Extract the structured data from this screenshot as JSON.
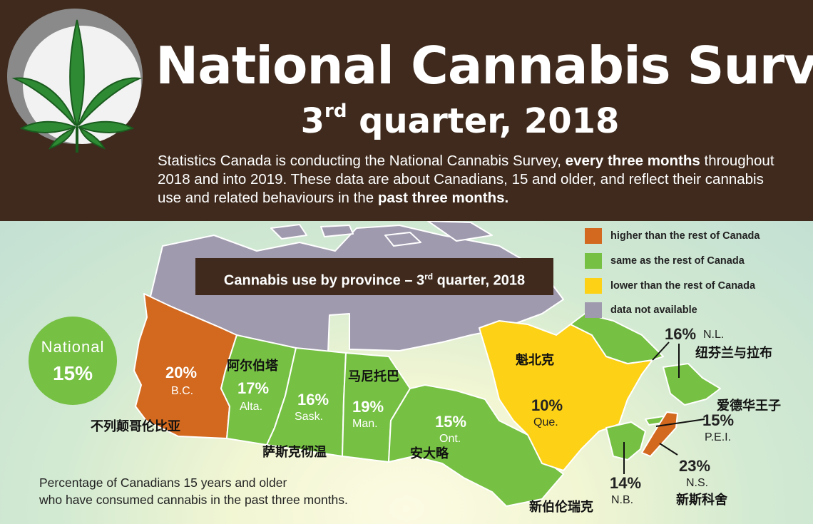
{
  "header": {
    "title": "National Cannabis Survey",
    "subtitle_prefix": "3",
    "subtitle_sup": "rd",
    "subtitle_rest": " quarter, 2018",
    "intro": {
      "p1": "Statistics Canada is conducting the National Cannabis Survey, ",
      "b1": "every three months",
      "p2": " throughout 2018 and into 2019. These data are about Canadians, 15 and older, and reflect their cannabis use and related behaviours in the ",
      "b2": "past three months."
    }
  },
  "banner": {
    "prefix": "Cannabis use by province – 3",
    "sup": "rd",
    "rest": " quarter, 2018"
  },
  "national": {
    "label": "National",
    "value": "15%"
  },
  "legend": [
    {
      "label": "higher than the rest of Canada",
      "color": "#d2691e"
    },
    {
      "label": "same as the rest of Canada",
      "color": "#76c043"
    },
    {
      "label": "lower than the rest of Canada",
      "color": "#fcd116"
    },
    {
      "label": "data not available",
      "color": "#a09aae"
    }
  ],
  "provinces": {
    "bc": {
      "pct": "20%",
      "abbr": "B.C.",
      "cn": "不列颠哥伦比亚",
      "status": "higher"
    },
    "ab": {
      "pct": "17%",
      "abbr": "Alta.",
      "cn": "阿尔伯塔",
      "status": "same"
    },
    "sk": {
      "pct": "16%",
      "abbr": "Sask.",
      "cn": "萨斯克彻温",
      "status": "same"
    },
    "mb": {
      "pct": "19%",
      "abbr": "Man.",
      "cn": "马尼托巴",
      "status": "same"
    },
    "on": {
      "pct": "15%",
      "abbr": "Ont.",
      "cn": "安大略",
      "status": "same"
    },
    "qc": {
      "pct": "10%",
      "abbr": "Que.",
      "cn": "魁北克",
      "status": "lower"
    },
    "nl": {
      "pct": "16%",
      "abbr": "N.L.",
      "cn": "纽芬兰与拉布",
      "status": "same"
    },
    "pe": {
      "pct": "15%",
      "abbr": "P.E.I.",
      "cn": "爱德华王子",
      "status": "same"
    },
    "ns": {
      "pct": "23%",
      "abbr": "N.S.",
      "cn": "新斯科舍",
      "status": "higher"
    },
    "nb": {
      "pct": "14%",
      "abbr": "N.B.",
      "cn": "新伯伦瑞克",
      "status": "same"
    }
  },
  "footnote": {
    "line1": "Percentage of Canadians 15 years and older",
    "line2": "who have consumed cannabis in the past three months."
  },
  "colors": {
    "brown": "#3f2a1d",
    "higher": "#d2691e",
    "same": "#76c043",
    "lower": "#fcd116",
    "na": "#a09aae"
  }
}
